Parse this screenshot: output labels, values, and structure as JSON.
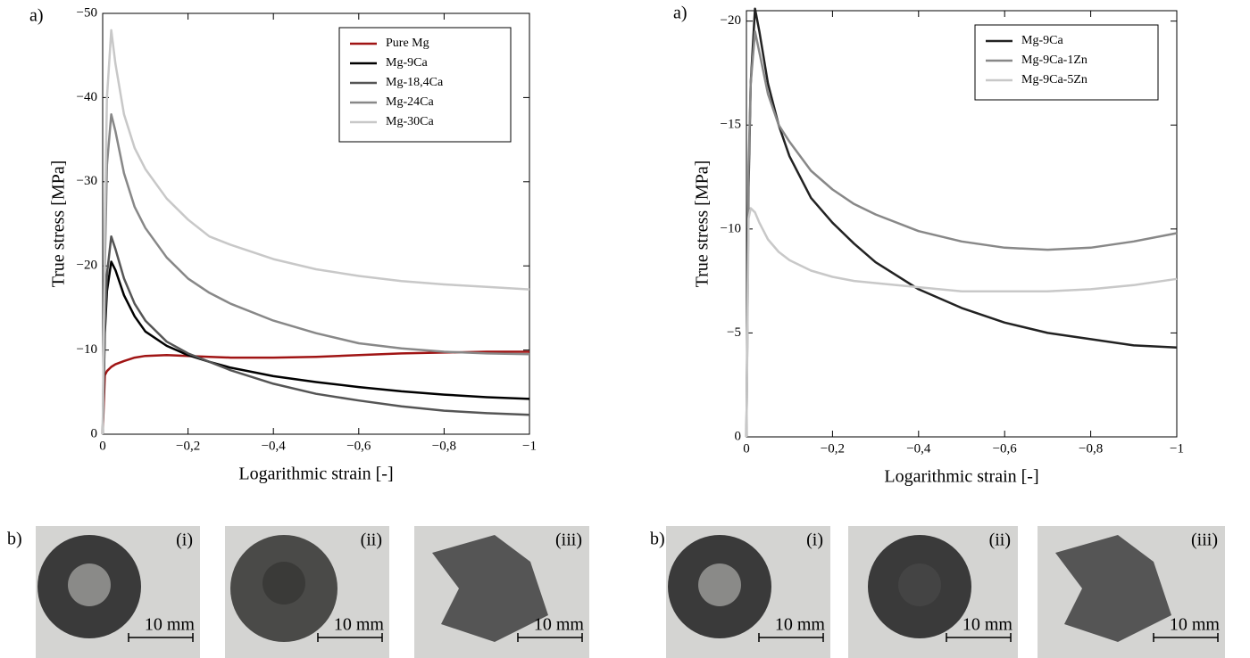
{
  "chart_data": [
    {
      "type": "line",
      "panel_label": "a)",
      "x_label": "Logarithmic strain [-]",
      "y_label": "True stress [MPa]",
      "xlim": [
        0,
        -1
      ],
      "ylim": [
        0,
        -50
      ],
      "xticks": [
        0,
        {
          "value": -0.2,
          "label": "−0,2"
        },
        {
          "value": -0.4,
          "label": "−0,4"
        },
        {
          "value": -0.6,
          "label": "−0,6"
        },
        {
          "value": -0.8,
          "label": "−0,8"
        },
        {
          "value": -1,
          "label": "−1"
        }
      ],
      "yticks": [
        0,
        {
          "value": -10,
          "label": "−10"
        },
        {
          "value": -20,
          "label": "−20"
        },
        {
          "value": -30,
          "label": "−30"
        },
        {
          "value": -40,
          "label": "−40"
        },
        {
          "value": -50,
          "label": "−50"
        }
      ],
      "legend": "upper right",
      "x": [
        0,
        -0.005,
        -0.01,
        -0.02,
        -0.03,
        -0.05,
        -0.075,
        -0.1,
        -0.15,
        -0.2,
        -0.25,
        -0.3,
        -0.4,
        -0.5,
        -0.6,
        -0.7,
        -0.8,
        -0.9,
        -1
      ],
      "series": [
        {
          "name": "Pure Mg",
          "color": "#a01414",
          "values": [
            0,
            -7,
            -7.5,
            -8,
            -8.3,
            -8.7,
            -9.1,
            -9.3,
            -9.4,
            -9.3,
            -9.2,
            -9.1,
            -9.1,
            -9.2,
            -9.4,
            -9.6,
            -9.7,
            -9.8,
            -9.8
          ]
        },
        {
          "name": "Mg-9Ca",
          "color": "#000000",
          "values": [
            0,
            -12,
            -17,
            -20.5,
            -19.5,
            -16.5,
            -14,
            -12.2,
            -10.5,
            -9.4,
            -8.6,
            -7.9,
            -6.9,
            -6.2,
            -5.6,
            -5.1,
            -4.7,
            -4.4,
            -4.2
          ]
        },
        {
          "name": "Mg-18,4Ca",
          "color": "#555555",
          "values": [
            0,
            -13,
            -19,
            -23.5,
            -22,
            -18.5,
            -15.5,
            -13.5,
            -11,
            -9.6,
            -8.6,
            -7.6,
            -6,
            -4.8,
            -4,
            -3.3,
            -2.8,
            -2.5,
            -2.3
          ]
        },
        {
          "name": "Mg-24Ca",
          "color": "#888888",
          "values": [
            0,
            -20,
            -32,
            -38,
            -36,
            -31,
            -27,
            -24.5,
            -21,
            -18.5,
            -16.8,
            -15.5,
            -13.5,
            -12,
            -10.8,
            -10.2,
            -9.8,
            -9.6,
            -9.5
          ]
        },
        {
          "name": "Mg-30Ca",
          "color": "#c8c8c8",
          "values": [
            0,
            -25,
            -40,
            -48,
            -44,
            -38,
            -34,
            -31.5,
            -28,
            -25.5,
            -23.5,
            -22.5,
            -20.8,
            -19.6,
            -18.8,
            -18.2,
            -17.8,
            -17.5,
            -17.2
          ]
        }
      ]
    },
    {
      "type": "line",
      "panel_label": "a)",
      "x_label": "Logarithmic strain [-]",
      "y_label": "True stress [MPa]",
      "xlim": [
        0,
        -1
      ],
      "ylim": [
        0,
        -20.5
      ],
      "xticks": [
        0,
        {
          "value": -0.2,
          "label": "−0,2"
        },
        {
          "value": -0.4,
          "label": "−0,4"
        },
        {
          "value": -0.6,
          "label": "−0,6"
        },
        {
          "value": -0.8,
          "label": "−0,8"
        },
        {
          "value": -1,
          "label": "−1"
        }
      ],
      "yticks": [
        0,
        {
          "value": -5,
          "label": "−5"
        },
        {
          "value": -10,
          "label": "−10"
        },
        {
          "value": -15,
          "label": "−15"
        },
        {
          "value": -20,
          "label": "−20"
        }
      ],
      "legend": "upper right",
      "x": [
        0,
        -0.005,
        -0.01,
        -0.02,
        -0.03,
        -0.05,
        -0.075,
        -0.1,
        -0.15,
        -0.2,
        -0.25,
        -0.3,
        -0.4,
        -0.5,
        -0.6,
        -0.7,
        -0.8,
        -0.9,
        -1
      ],
      "series": [
        {
          "name": "Mg-9Ca",
          "color": "#222222",
          "values": [
            0,
            -12,
            -17,
            -20.6,
            -19.5,
            -17,
            -15,
            -13.5,
            -11.5,
            -10.3,
            -9.3,
            -8.4,
            -7.1,
            -6.2,
            -5.5,
            -5,
            -4.7,
            -4.4,
            -4.3
          ]
        },
        {
          "name": "Mg-9Ca-1Zn",
          "color": "#888888",
          "values": [
            0,
            -13,
            -17,
            -19.5,
            -18.5,
            -16.5,
            -15,
            -14.2,
            -12.8,
            -11.9,
            -11.2,
            -10.7,
            -9.9,
            -9.4,
            -9.1,
            -9,
            -9.1,
            -9.4,
            -9.8
          ]
        },
        {
          "name": "Mg-9Ca-5Zn",
          "color": "#c8c8c8",
          "values": [
            0,
            -10.5,
            -11,
            -10.8,
            -10.3,
            -9.5,
            -8.9,
            -8.5,
            -8,
            -7.7,
            -7.5,
            -7.4,
            -7.2,
            -7,
            -7,
            -7,
            -7.1,
            -7.3,
            -7.6
          ]
        }
      ]
    }
  ],
  "photo_rows": [
    {
      "label": "b)",
      "photos": [
        {
          "tag": "(i)",
          "scale": "10 mm"
        },
        {
          "tag": "(ii)",
          "scale": "10 mm"
        },
        {
          "tag": "(iii)",
          "scale": "10 mm"
        }
      ]
    },
    {
      "label": "b)",
      "photos": [
        {
          "tag": "(i)",
          "scale": "10 mm"
        },
        {
          "tag": "(ii)",
          "scale": "10 mm"
        },
        {
          "tag": "(iii)",
          "scale": "10 mm"
        }
      ]
    }
  ]
}
